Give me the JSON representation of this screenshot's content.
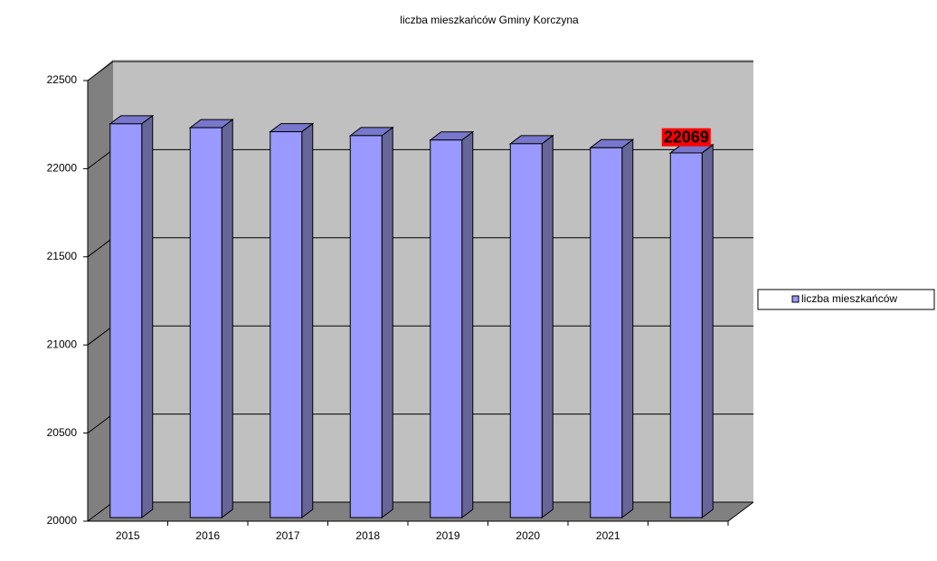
{
  "chart_data": {
    "type": "bar3d",
    "title": "liczba mieszkańców  Gminy Korczyna",
    "categories": [
      "2015",
      "2016",
      "2017",
      "2018",
      "2019",
      "2020",
      "2021",
      null
    ],
    "series": [
      {
        "name": "liczba mieszkańców",
        "color": "#9999ff",
        "values": [
          22234,
          22212,
          22189,
          22167,
          22142,
          22121,
          22098,
          22069
        ],
        "value_labels": [
          null,
          null,
          null,
          null,
          null,
          null,
          null,
          "22069"
        ]
      }
    ],
    "ylim": [
      20000,
      22500
    ],
    "yticks": [
      20000,
      20500,
      21000,
      21500,
      22000,
      22500
    ],
    "grid": true,
    "legend": "right"
  }
}
